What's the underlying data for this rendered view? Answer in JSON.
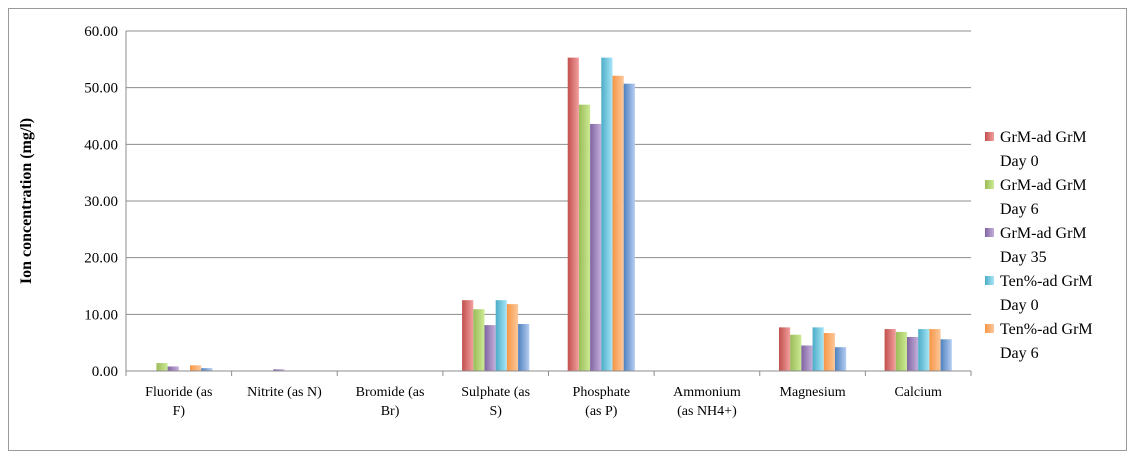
{
  "chart_data": {
    "type": "bar",
    "title": "",
    "xlabel": "",
    "ylabel": "Ion concentration (mg/l)",
    "ylim": [
      0,
      60
    ],
    "yticks": [
      "0.00",
      "10.00",
      "20.00",
      "30.00",
      "40.00",
      "50.00",
      "60.00"
    ],
    "grid": true,
    "legend_position": "right",
    "categories": [
      [
        "Fluoride (as",
        "F)"
      ],
      [
        "Nitrite (as N)"
      ],
      [
        "Bromide (as",
        "Br)"
      ],
      [
        "Sulphate (as",
        "S)"
      ],
      [
        "Phosphate",
        "(as P)"
      ],
      [
        "Ammonium",
        "(as NH4+)"
      ],
      [
        "Magnesium"
      ],
      [
        "Calcium"
      ]
    ],
    "series": [
      {
        "name": [
          "GrM-ad GrM",
          "Day 0"
        ],
        "color": "#C0504D",
        "light": "#F4A0A0",
        "values": [
          0.0,
          0.0,
          0.0,
          12.5,
          55.3,
          0.0,
          7.7,
          7.4
        ]
      },
      {
        "name": [
          "GrM-ad GrM",
          "Day 6"
        ],
        "color": "#9BBB59",
        "light": "#CDEB94",
        "values": [
          1.4,
          0.0,
          0.0,
          10.9,
          47.0,
          0.0,
          6.4,
          6.9
        ]
      },
      {
        "name": [
          "GrM-ad GrM",
          "Day 35"
        ],
        "color": "#8064A2",
        "light": "#C4B0DC",
        "values": [
          0.8,
          0.3,
          0.0,
          8.1,
          43.6,
          0.0,
          4.5,
          6.0
        ]
      },
      {
        "name": [
          "Ten%-ad GrM",
          "Day 0"
        ],
        "color": "#4BACC6",
        "light": "#A8E6F8",
        "values": [
          0.0,
          0.0,
          0.0,
          12.5,
          55.3,
          0.0,
          7.7,
          7.4
        ]
      },
      {
        "name": [
          "Ten%-ad GrM",
          "Day 6"
        ],
        "color": "#F79646",
        "light": "#FCC89A",
        "values": [
          1.0,
          0.0,
          0.0,
          11.8,
          52.1,
          0.0,
          6.7,
          7.4
        ]
      },
      {
        "name": [],
        "color": "#4F81BD",
        "light": "#B5CDF3",
        "values": [
          0.5,
          0.0,
          0.0,
          8.3,
          50.7,
          0.0,
          4.2,
          5.6
        ]
      }
    ]
  }
}
